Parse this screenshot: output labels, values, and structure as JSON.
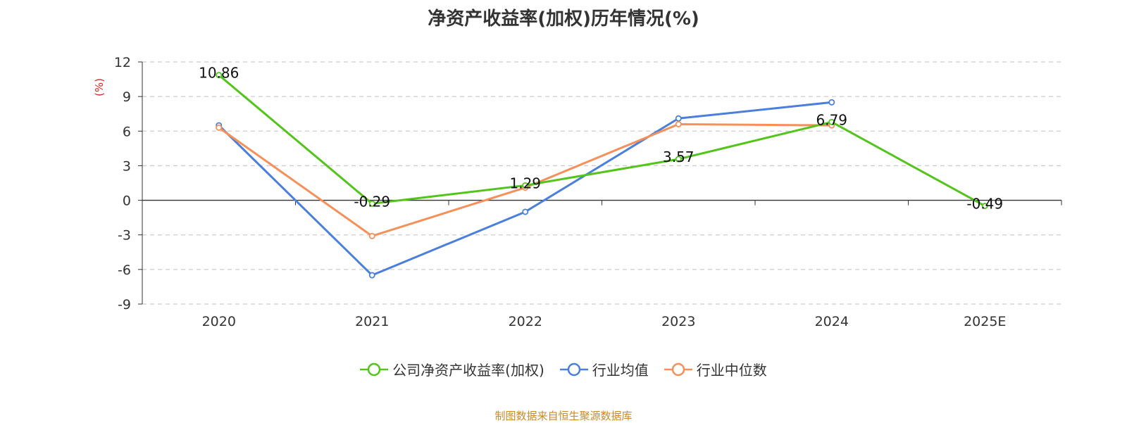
{
  "chart_data": {
    "type": "line",
    "title": "净资产收益率(加权)历年情况(%)",
    "ylabel": "(%)",
    "categories": [
      "2020",
      "2021",
      "2022",
      "2023",
      "2024",
      "2025E"
    ],
    "ylim": [
      -9,
      12
    ],
    "yticks": [
      -9,
      -6,
      -3,
      0,
      3,
      6,
      9,
      12
    ],
    "grid": true,
    "legend_position": "bottom",
    "series": [
      {
        "name": "公司净资产收益率(加权)",
        "color": "#52c41a",
        "values": [
          10.86,
          -0.29,
          1.29,
          3.57,
          6.79,
          -0.49
        ],
        "show_labels": true
      },
      {
        "name": "行业均值",
        "color": "#4a7fdd",
        "values": [
          6.5,
          -6.5,
          -1.0,
          7.1,
          8.5,
          null
        ],
        "show_labels": false
      },
      {
        "name": "行业中位数",
        "color": "#f5905a",
        "values": [
          6.3,
          -3.1,
          1.1,
          6.6,
          6.5,
          null
        ],
        "show_labels": false
      }
    ]
  },
  "colors": {
    "ylabel": "#e02020",
    "source": "#c9892b",
    "grid": "#cccccc",
    "axis": "#333333"
  },
  "footer": {
    "source": "制图数据来自恒生聚源数据库"
  }
}
